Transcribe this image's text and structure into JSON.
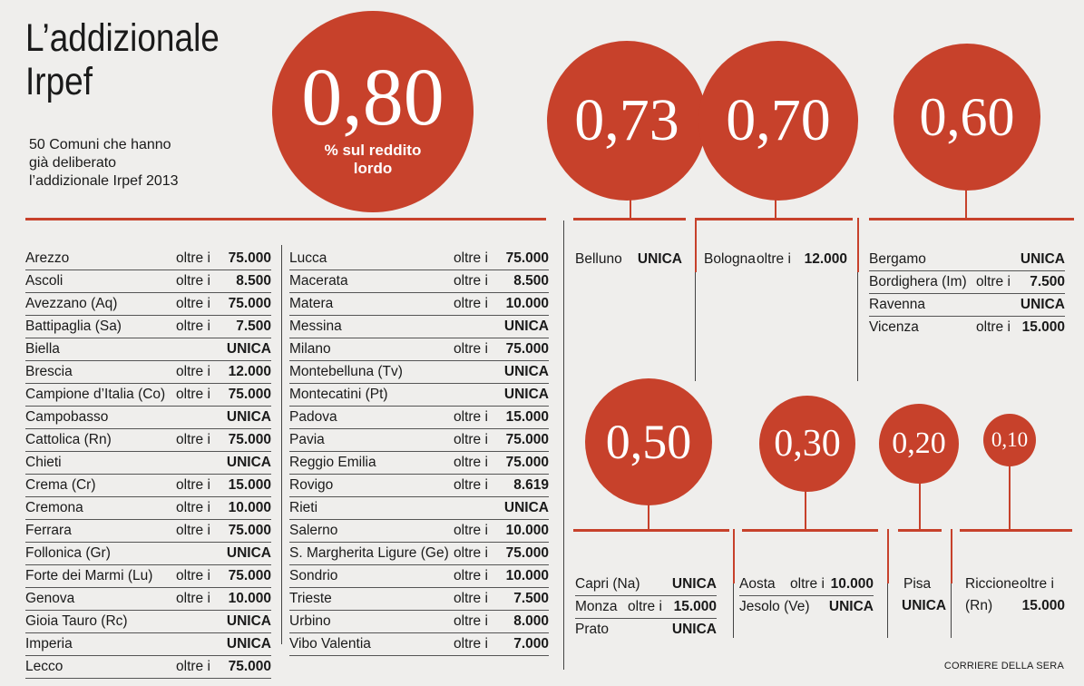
{
  "header": {
    "title_line1": "L’addizionale",
    "title_line2": "Irpef",
    "subtitle_line1": "50 Comuni che hanno",
    "subtitle_line2": "già deliberato",
    "subtitle_line3": "l’addizionale Irpef 2013"
  },
  "credit": "CORRIERE DELLA SERA",
  "colors": {
    "accent": "#c7412b",
    "background": "#efeeec"
  },
  "chart_data": {
    "type": "table",
    "title": "L’addizionale Irpef",
    "unit": "% sul reddito lordo",
    "rates": [
      "0,80",
      "0,73",
      "0,70",
      "0,60",
      "0,50",
      "0,30",
      "0,20",
      "0,10"
    ],
    "groups": [
      {
        "rate": "0,80",
        "col1": [
          {
            "name": "Arezzo",
            "prefix": "oltre i",
            "value": "75.000"
          },
          {
            "name": "Ascoli",
            "prefix": "oltre i",
            "value": "8.500"
          },
          {
            "name": "Avezzano (Aq)",
            "prefix": "oltre i",
            "value": "75.000"
          },
          {
            "name": "Battipaglia (Sa)",
            "prefix": "oltre i",
            "value": "7.500"
          },
          {
            "name": "Biella",
            "prefix": "",
            "value": "UNICA"
          },
          {
            "name": "Brescia",
            "prefix": "oltre i",
            "value": "12.000"
          },
          {
            "name": "Campione d’Italia (Co)",
            "prefix": "oltre i",
            "value": "75.000"
          },
          {
            "name": "Campobasso",
            "prefix": "",
            "value": "UNICA"
          },
          {
            "name": "Cattolica (Rn)",
            "prefix": "oltre i",
            "value": "75.000"
          },
          {
            "name": "Chieti",
            "prefix": "",
            "value": "UNICA"
          },
          {
            "name": "Crema (Cr)",
            "prefix": "oltre i",
            "value": "15.000"
          },
          {
            "name": "Cremona",
            "prefix": "oltre i",
            "value": "10.000"
          },
          {
            "name": "Ferrara",
            "prefix": "oltre i",
            "value": "75.000"
          },
          {
            "name": "Follonica (Gr)",
            "prefix": "",
            "value": "UNICA"
          },
          {
            "name": "Forte dei Marmi (Lu)",
            "prefix": "oltre i",
            "value": "75.000"
          },
          {
            "name": "Genova",
            "prefix": "oltre i",
            "value": "10.000"
          },
          {
            "name": "Gioia Tauro (Rc)",
            "prefix": "",
            "value": "UNICA"
          },
          {
            "name": "Imperia",
            "prefix": "",
            "value": "UNICA"
          },
          {
            "name": "Lecco",
            "prefix": "oltre i",
            "value": "75.000"
          }
        ],
        "col2": [
          {
            "name": "Lucca",
            "prefix": "oltre i",
            "value": "75.000"
          },
          {
            "name": "Macerata",
            "prefix": "oltre i",
            "value": "8.500"
          },
          {
            "name": "Matera",
            "prefix": "oltre i",
            "value": "10.000"
          },
          {
            "name": "Messina",
            "prefix": "",
            "value": "UNICA"
          },
          {
            "name": "Milano",
            "prefix": "oltre i",
            "value": "75.000"
          },
          {
            "name": "Montebelluna (Tv)",
            "prefix": "",
            "value": "UNICA"
          },
          {
            "name": "Montecatini (Pt)",
            "prefix": "",
            "value": "UNICA"
          },
          {
            "name": "Padova",
            "prefix": "oltre i",
            "value": "15.000"
          },
          {
            "name": "Pavia",
            "prefix": "oltre i",
            "value": "75.000"
          },
          {
            "name": "Reggio Emilia",
            "prefix": "oltre i",
            "value": "75.000"
          },
          {
            "name": "Rovigo",
            "prefix": "oltre i",
            "value": "8.619"
          },
          {
            "name": "Rieti",
            "prefix": "",
            "value": "UNICA"
          },
          {
            "name": "Salerno",
            "prefix": "oltre i",
            "value": "10.000"
          },
          {
            "name": "S. Margherita Ligure (Ge)",
            "prefix": "oltre i",
            "value": "75.000"
          },
          {
            "name": "Sondrio",
            "prefix": "oltre i",
            "value": "10.000"
          },
          {
            "name": "Trieste",
            "prefix": "oltre i",
            "value": "7.500"
          },
          {
            "name": "Urbino",
            "prefix": "oltre i",
            "value": "8.000"
          },
          {
            "name": "Vibo Valentia",
            "prefix": "oltre i",
            "value": "7.000"
          }
        ]
      },
      {
        "rate": "0,73",
        "rows": [
          {
            "name": "Belluno",
            "prefix": "",
            "value": "UNICA"
          }
        ]
      },
      {
        "rate": "0,70",
        "rows": [
          {
            "name": "Bologna",
            "prefix": "oltre i",
            "value": "12.000"
          }
        ]
      },
      {
        "rate": "0,60",
        "rows": [
          {
            "name": "Bergamo",
            "prefix": "",
            "value": "UNICA"
          },
          {
            "name": "Bordighera (Im)",
            "prefix": "oltre i",
            "value": "7.500"
          },
          {
            "name": "Ravenna",
            "prefix": "",
            "value": "UNICA"
          },
          {
            "name": "Vicenza",
            "prefix": "oltre i",
            "value": "15.000"
          }
        ]
      },
      {
        "rate": "0,50",
        "rows": [
          {
            "name": "Capri (Na)",
            "prefix": "",
            "value": "UNICA"
          },
          {
            "name": "Monza",
            "prefix": "oltre i",
            "value": "15.000"
          },
          {
            "name": "Prato",
            "prefix": "",
            "value": "UNICA"
          }
        ]
      },
      {
        "rate": "0,30",
        "rows": [
          {
            "name": "Aosta",
            "prefix": "oltre i",
            "value": "10.000"
          },
          {
            "name": "Jesolo (Ve)",
            "prefix": "",
            "value": "UNICA"
          }
        ]
      },
      {
        "rate": "0,20",
        "rows": [
          {
            "name": "Pisa",
            "prefix": "",
            "value": "UNICA"
          }
        ]
      },
      {
        "rate": "0,10",
        "rows": [
          {
            "name": "Riccione",
            "prefix": "oltre i",
            "value": ""
          },
          {
            "name": "(Rn)",
            "prefix": "",
            "value": "15.000"
          }
        ]
      }
    ]
  }
}
